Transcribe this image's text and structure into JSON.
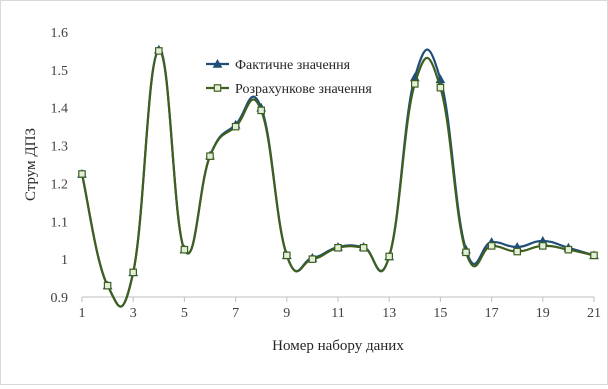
{
  "chart_data": {
    "type": "line",
    "title": "",
    "xlabel": "Номер набору даних",
    "ylabel": "Струм ДПЗ",
    "x": [
      1,
      2,
      3,
      4,
      5,
      6,
      7,
      8,
      9,
      10,
      11,
      12,
      13,
      14,
      15,
      16,
      17,
      18,
      19,
      20,
      21
    ],
    "xticks": [
      1,
      3,
      5,
      7,
      9,
      11,
      13,
      15,
      17,
      19,
      21
    ],
    "ylim": [
      0.9,
      1.6
    ],
    "yticks": [
      0.9,
      1.0,
      1.1,
      1.2,
      1.3,
      1.4,
      1.5,
      1.6
    ],
    "ytick_labels": [
      "0.9",
      "1",
      "1.1",
      "1.2",
      "1.3",
      "1.4",
      "1.5",
      "1.6"
    ],
    "grid": false,
    "legend_position": "top-center",
    "smooth": true,
    "series": [
      {
        "name": "Фактичне значення",
        "marker": "triangle",
        "color": "#1f4e79",
        "values": [
          1.225,
          0.93,
          0.965,
          1.553,
          1.025,
          1.273,
          1.355,
          1.4,
          1.01,
          1.003,
          1.032,
          1.032,
          1.007,
          1.48,
          1.475,
          1.025,
          1.045,
          1.032,
          1.048,
          1.03,
          1.01
        ]
      },
      {
        "name": "Розрахункове значення",
        "marker": "square",
        "color": "#3f5f1f",
        "values": [
          1.225,
          0.93,
          0.965,
          1.55,
          1.025,
          1.272,
          1.35,
          1.393,
          1.01,
          1.0,
          1.03,
          1.03,
          1.007,
          1.463,
          1.453,
          1.018,
          1.035,
          1.02,
          1.035,
          1.025,
          1.01
        ]
      }
    ]
  }
}
